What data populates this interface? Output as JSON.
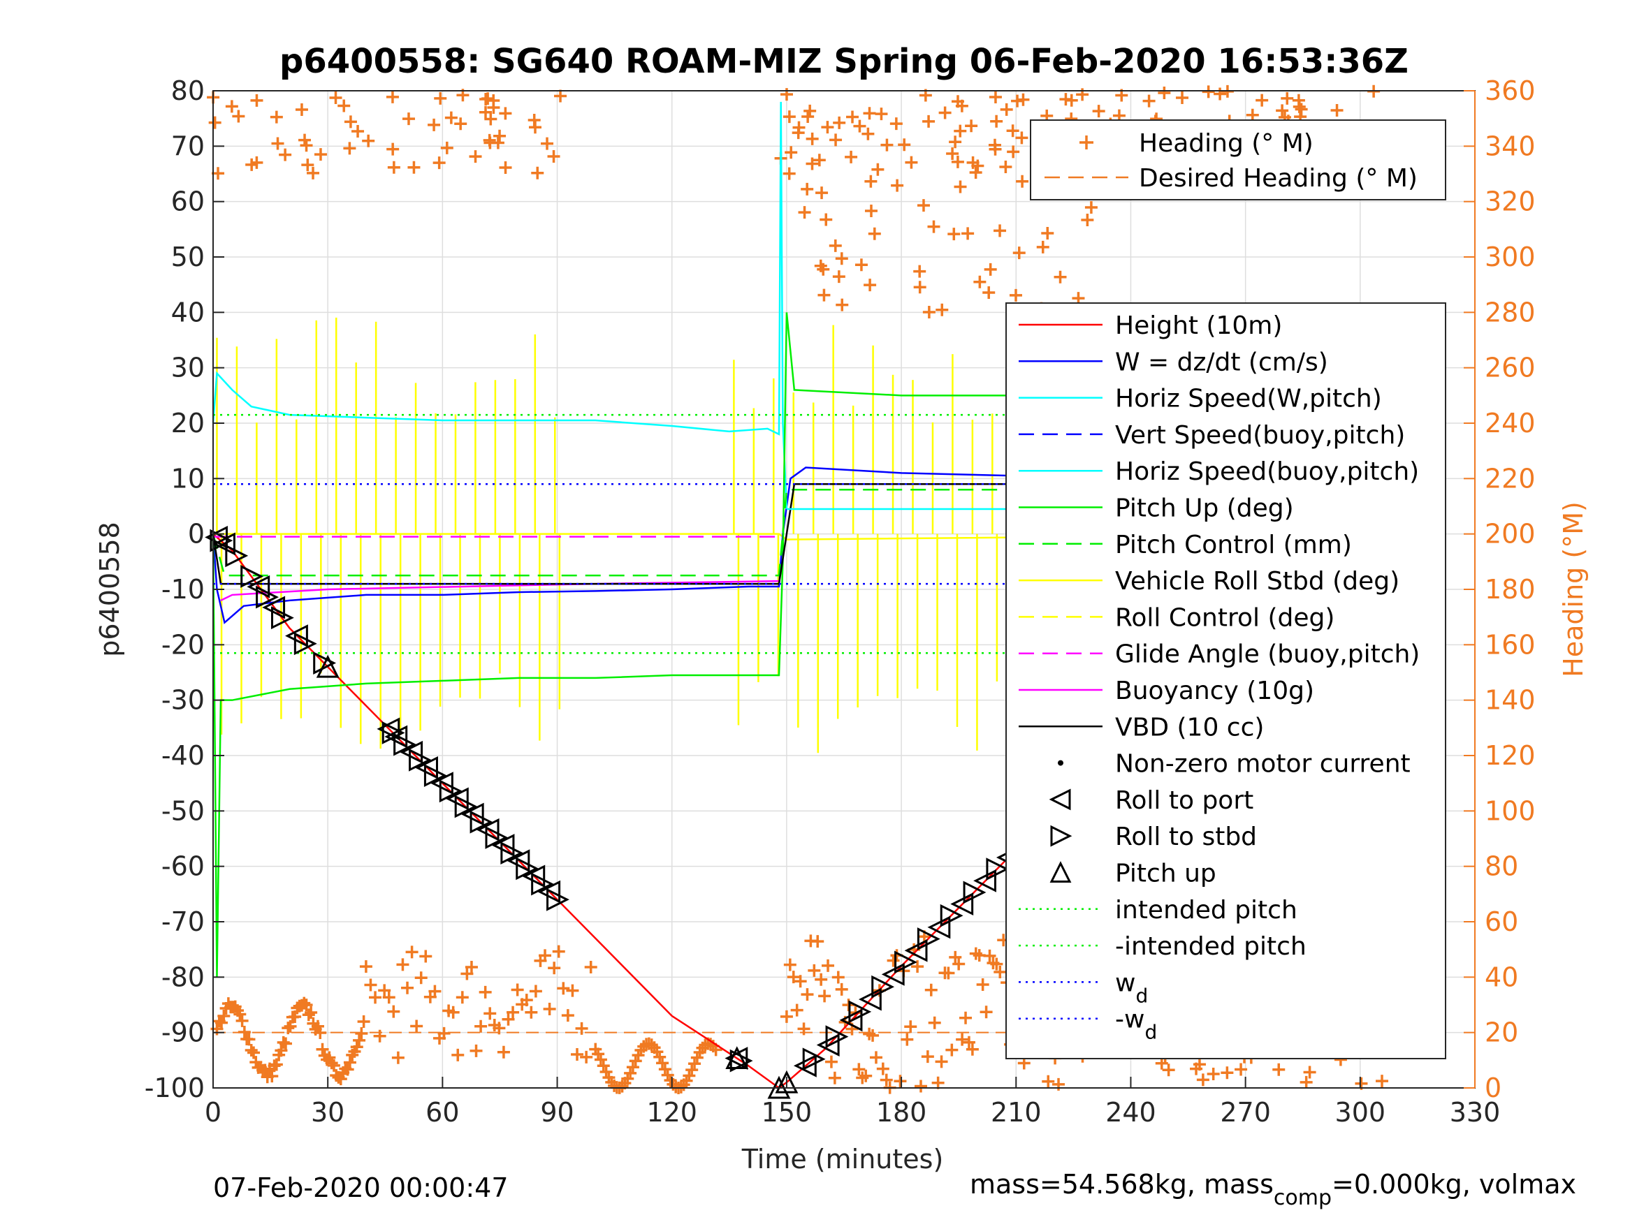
{
  "chart_data": {
    "type": "line",
    "title": "p6400558: SG640 ROAM-MIZ Spring 06-Feb-2020 16:53:36Z",
    "xlabel": "Time (minutes)",
    "ylabel": "p6400558",
    "ylabel_right": "Heading (°M)",
    "xlim": [
      0,
      330
    ],
    "ylim": [
      -100,
      80
    ],
    "ylim_right": [
      0,
      360
    ],
    "x_ticks": [
      "0",
      "30",
      "60",
      "90",
      "120",
      "150",
      "180",
      "210",
      "240",
      "270",
      "300",
      "330"
    ],
    "y_ticks": [
      "-100",
      "-90",
      "-80",
      "-70",
      "-60",
      "-50",
      "-40",
      "-30",
      "-20",
      "-10",
      "0",
      "10",
      "20",
      "30",
      "40",
      "50",
      "60",
      "70",
      "80"
    ],
    "y_ticks_right": [
      "0",
      "20",
      "40",
      "60",
      "80",
      "100",
      "120",
      "140",
      "160",
      "180",
      "200",
      "220",
      "240",
      "260",
      "280",
      "300",
      "320",
      "340",
      "360"
    ],
    "grid": true,
    "legend_heading": {
      "placement": "top-right",
      "entries": [
        {
          "name": "Heading (° M)",
          "color": "#f07a22",
          "style": "marker-plus"
        },
        {
          "name": "Desired Heading (° M)",
          "color": "#f07a22",
          "style": "dashed"
        }
      ]
    },
    "legend_main": {
      "placement": "right",
      "entries": [
        {
          "name": "Height (10m)",
          "color": "#ff0000",
          "style": "solid"
        },
        {
          "name": "W = dz/dt (cm/s)",
          "color": "#0000ff",
          "style": "solid"
        },
        {
          "name": "Horiz Speed(W,pitch)",
          "color": "#00ffff",
          "style": "solid"
        },
        {
          "name": "Vert Speed(buoy,pitch)",
          "color": "#0000ff",
          "style": "dashed"
        },
        {
          "name": "Horiz Speed(buoy,pitch)",
          "color": "#00ffff",
          "style": "solid"
        },
        {
          "name": "Pitch Up (deg)",
          "color": "#00ee00",
          "style": "solid"
        },
        {
          "name": "Pitch Control (mm)",
          "color": "#00ee00",
          "style": "dashed"
        },
        {
          "name": "Vehicle Roll Stbd (deg)",
          "color": "#ffff00",
          "style": "solid"
        },
        {
          "name": "Roll Control (deg)",
          "color": "#ffff00",
          "style": "dashed"
        },
        {
          "name": "Glide Angle (buoy,pitch)",
          "color": "#ff00ff",
          "style": "dashed"
        },
        {
          "name": "Buoyancy (10g)",
          "color": "#ff00ff",
          "style": "solid"
        },
        {
          "name": "VBD (10 cc)",
          "color": "#000000",
          "style": "solid"
        },
        {
          "name": "Non-zero motor current",
          "color": "#000000",
          "style": "dot"
        },
        {
          "name": "Roll to port",
          "color": "#000000",
          "style": "marker-left"
        },
        {
          "name": "Roll to stbd",
          "color": "#000000",
          "style": "marker-right"
        },
        {
          "name": "Pitch up",
          "color": "#000000",
          "style": "marker-up"
        },
        {
          "name": "intended pitch",
          "color": "#00ee00",
          "style": "dotted"
        },
        {
          "name": "-intended pitch",
          "color": "#00ee00",
          "style": "dotted"
        },
        {
          "name": "w",
          "sub": "d",
          "color": "#0000ff",
          "style": "dotted"
        },
        {
          "name": "-w",
          "sub": "d",
          "color": "#0000ff",
          "style": "dotted"
        }
      ]
    },
    "series": [
      {
        "name": "Height (10m)",
        "color": "#ff0000",
        "x": [
          0,
          5,
          20,
          40,
          60,
          80,
          100,
          120,
          140,
          148,
          150,
          160,
          180,
          200,
          220,
          240,
          260,
          280,
          300,
          308
        ],
        "values": [
          0,
          -3,
          -17,
          -31,
          -45,
          -59,
          -73,
          -87,
          -96,
          -100,
          -99,
          -93,
          -78,
          -64,
          -50,
          -37,
          -25,
          -13,
          -4,
          0
        ]
      },
      {
        "name": "W = dz/dt (cm/s)",
        "color": "#0000ff",
        "x": [
          0,
          1,
          3,
          8,
          20,
          40,
          60,
          80,
          100,
          120,
          140,
          148,
          149,
          151,
          155,
          180,
          210,
          240,
          270,
          300,
          306,
          307
        ],
        "values": [
          0,
          -10,
          -16,
          -13,
          -12,
          -11,
          -11,
          -10.5,
          -10.3,
          -10,
          -9.5,
          -9.5,
          0,
          10,
          12,
          11,
          10.5,
          10,
          10,
          9,
          9,
          20
        ]
      },
      {
        "name": "Horiz Speed(W,pitch)",
        "color": "#00ffff",
        "x": [
          0,
          1,
          5,
          10,
          20,
          40,
          60,
          80,
          100,
          120,
          135,
          145,
          148,
          148.5,
          149,
          150
        ],
        "values": [
          20,
          29,
          26,
          23,
          21.5,
          21,
          20.5,
          20.5,
          20.5,
          19.5,
          18.5,
          19,
          18,
          78,
          20,
          4.5
        ]
      },
      {
        "name": "Pitch Up (deg)",
        "color": "#00ee00",
        "x": [
          0,
          1,
          2,
          5,
          20,
          40,
          60,
          80,
          100,
          120,
          140,
          148,
          149,
          150,
          152,
          180,
          210,
          240,
          270,
          300,
          307
        ],
        "values": [
          0,
          -80,
          -30,
          -30,
          -28,
          -27,
          -26.5,
          -26,
          -26,
          -25.5,
          -25.5,
          -25.5,
          -5,
          40,
          26,
          25,
          25,
          24.5,
          24,
          24,
          25
        ]
      },
      {
        "name": "Pitch Control (mm)",
        "color": "#00ee00",
        "dashed": true,
        "x": [
          0,
          3,
          148,
          150,
          308
        ],
        "values": [
          0,
          -7.5,
          -7.5,
          8,
          8
        ]
      },
      {
        "name": "Glide Angle (buoy,pitch)",
        "color": "#ff00ff",
        "dashed": true,
        "x": [
          0,
          148
        ],
        "values": [
          -0.5,
          -0.5
        ]
      },
      {
        "name": "Buoyancy (10g)",
        "color": "#ff00ff",
        "x": [
          2,
          5,
          30,
          100,
          148
        ],
        "values": [
          -12,
          -11,
          -10,
          -9,
          -8.5
        ]
      },
      {
        "name": "VBD (10 cc)",
        "color": "#000000",
        "x": [
          0,
          2,
          148,
          150,
          152,
          308
        ],
        "values": [
          0,
          -9,
          -9,
          0,
          9,
          9
        ]
      },
      {
        "name": "Horiz Speed(buoy,pitch)",
        "color": "#00ffff",
        "x": [
          150,
          308
        ],
        "values": [
          4.5,
          4.5
        ]
      },
      {
        "name": "intended pitch",
        "color": "#00ee00",
        "dotted": true,
        "x": [
          0,
          308
        ],
        "values": [
          21.5,
          21.5
        ]
      },
      {
        "name": "-intended pitch",
        "color": "#00ee00",
        "dotted": true,
        "x": [
          0,
          308
        ],
        "values": [
          -21.5,
          -21.5
        ]
      },
      {
        "name": "w_d",
        "color": "#0000ff",
        "dotted": true,
        "x": [
          0,
          308
        ],
        "values": [
          9,
          9
        ]
      },
      {
        "name": "-w_d",
        "color": "#0000ff",
        "dotted": true,
        "x": [
          0,
          308
        ],
        "values": [
          -9,
          -9
        ]
      }
    ],
    "heading_desired": {
      "color": "#f07a22",
      "x": [
        0,
        308
      ],
      "values_right": [
        20,
        20
      ]
    },
    "markers": {
      "roll_port_x": [
        1,
        3,
        12,
        16,
        22,
        46,
        48,
        52,
        56,
        60,
        64,
        68,
        72,
        76,
        80,
        84,
        88,
        137,
        155,
        161,
        167,
        172,
        178,
        184,
        190,
        196,
        202,
        208,
        214,
        220,
        224,
        230,
        236,
        242,
        248,
        254,
        260,
        266,
        272,
        278,
        284,
        290,
        296,
        302,
        306
      ],
      "roll_stbd_x": [
        2,
        6,
        10,
        14,
        18,
        24,
        29,
        47,
        50,
        54,
        58,
        62,
        66,
        70,
        74,
        78,
        82,
        86,
        90,
        138,
        157,
        163,
        169,
        175,
        181,
        187,
        193,
        199,
        205,
        211,
        217,
        222,
        227,
        233,
        239,
        245,
        251,
        257,
        263,
        269,
        275,
        281,
        287,
        293,
        299,
        304,
        308
      ],
      "pitch_up_x": [
        148,
        150,
        30,
        137
      ]
    },
    "footer_left": "07-Feb-2020 00:00:47",
    "footer_right_prefix": "mass=54.568kg, mass",
    "footer_right_sub": "comp",
    "footer_right_suffix": "=0.000kg, volmax"
  }
}
